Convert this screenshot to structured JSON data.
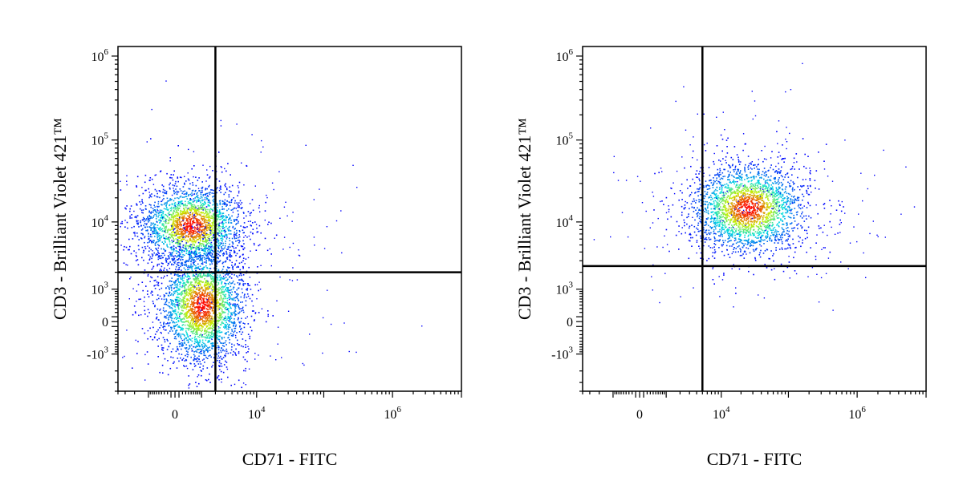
{
  "colors": {
    "background": "#ffffff",
    "frame": "#000000",
    "gate_lines": "#000000",
    "density_low": "#0000ff",
    "density_mid": "#00e0e0",
    "density_midhigh": "#c8f000",
    "density_high": "#ff0000"
  },
  "chart_data": [
    {
      "type": "scatter",
      "subtype": "flow-cytometry-density-dot-plot",
      "xlabel": "CD71 - FITC",
      "ylabel": "CD3 - Brilliant Violet 421™",
      "x_scale": "biexponential",
      "y_scale": "biexponential",
      "x_ticks": [
        {
          "value": 0,
          "base": "0",
          "exp": ""
        },
        {
          "value": 10000,
          "base": "10",
          "exp": "4"
        },
        {
          "value": 1000000,
          "base": "10",
          "exp": "6"
        }
      ],
      "y_ticks": [
        {
          "value": -1000,
          "base": "-10",
          "exp": "3"
        },
        {
          "value": 0,
          "base": "0",
          "exp": ""
        },
        {
          "value": 1000,
          "base": "10",
          "exp": "3"
        },
        {
          "value": 10000,
          "base": "10",
          "exp": "4"
        },
        {
          "value": 100000,
          "base": "10",
          "exp": "5"
        },
        {
          "value": 1000000,
          "base": "10",
          "exp": "6"
        }
      ],
      "quadrant_gate": {
        "x": 2000,
        "y": 2000
      },
      "populations": [
        {
          "center_x": 500,
          "center_y": 9000,
          "description": "CD3+ CD71-"
        },
        {
          "center_x": 1000,
          "center_y": 400,
          "description": "CD3- CD71-"
        }
      ],
      "grid": false,
      "legend": "none"
    },
    {
      "type": "scatter",
      "subtype": "flow-cytometry-density-dot-plot",
      "xlabel": "CD71 - FITC",
      "ylabel": "CD3 - Brilliant Violet 421™",
      "x_scale": "biexponential",
      "y_scale": "biexponential",
      "x_ticks": [
        {
          "value": 0,
          "base": "0",
          "exp": ""
        },
        {
          "value": 10000,
          "base": "10",
          "exp": "4"
        },
        {
          "value": 1000000,
          "base": "10",
          "exp": "6"
        }
      ],
      "y_ticks": [
        {
          "value": -1000,
          "base": "-10",
          "exp": "3"
        },
        {
          "value": 0,
          "base": "0",
          "exp": ""
        },
        {
          "value": 1000,
          "base": "10",
          "exp": "3"
        },
        {
          "value": 10000,
          "base": "10",
          "exp": "4"
        },
        {
          "value": 100000,
          "base": "10",
          "exp": "5"
        },
        {
          "value": 1000000,
          "base": "10",
          "exp": "6"
        }
      ],
      "quadrant_gate": {
        "x": 5000,
        "y": 2500
      },
      "populations": [
        {
          "center_x": 25000,
          "center_y": 15000,
          "description": "CD3+ CD71+"
        }
      ],
      "grid": false,
      "legend": "none"
    }
  ]
}
